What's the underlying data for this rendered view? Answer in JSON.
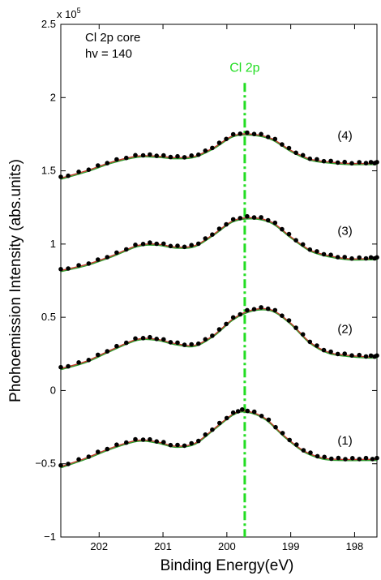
{
  "chart_data": {
    "type": "line",
    "xlabel": "Binding Energy(eV)",
    "ylabel": "Phohoemission Intensity (abs.units)",
    "y_multiplier": "x 10",
    "y_multiplier_exp": "5",
    "xlim": [
      202.6,
      197.65
    ],
    "ylim": [
      -1,
      2.5
    ],
    "x_reversed": true,
    "x_ticks": [
      202,
      201,
      200,
      199,
      198
    ],
    "x_tick_labels": [
      "202",
      "201",
      "200",
      "199",
      "198"
    ],
    "y_ticks": [
      -1,
      -0.5,
      0,
      0.5,
      1,
      1.5,
      2,
      2.5
    ],
    "y_tick_labels": [
      "−1",
      "−0.5",
      "0",
      "0.5",
      "1",
      "1.5",
      "2",
      "2.5"
    ],
    "annotation_lines": [
      "Cl 2p core",
      "hv = 140"
    ],
    "marker_line": {
      "x": 199.72,
      "label": "Cl 2p",
      "color": "#22dd22"
    },
    "fit_colors": [
      "#c0392b",
      "#2e9e2e"
    ],
    "point_color": "#000000",
    "series": [
      {
        "label": "(1)",
        "label_x": 198.15,
        "label_y": -0.34,
        "x": [
          202.6,
          202.2,
          201.8,
          201.4,
          201.1,
          200.8,
          200.5,
          200.2,
          199.9,
          199.7,
          199.4,
          199.1,
          198.8,
          198.5,
          198.2,
          197.9,
          197.65
        ],
        "y": [
          -0.52,
          -0.46,
          -0.39,
          -0.34,
          -0.35,
          -0.38,
          -0.36,
          -0.26,
          -0.16,
          -0.14,
          -0.19,
          -0.31,
          -0.41,
          -0.46,
          -0.47,
          -0.47,
          -0.47
        ]
      },
      {
        "label": "(2)",
        "label_x": 198.15,
        "label_y": 0.42,
        "x": [
          202.6,
          202.2,
          201.8,
          201.4,
          201.1,
          200.8,
          200.5,
          200.2,
          199.9,
          199.6,
          199.3,
          199.0,
          198.7,
          198.4,
          198.1,
          197.8,
          197.65
        ],
        "y": [
          0.15,
          0.2,
          0.28,
          0.35,
          0.35,
          0.32,
          0.31,
          0.38,
          0.49,
          0.55,
          0.55,
          0.46,
          0.33,
          0.26,
          0.24,
          0.23,
          0.23
        ]
      },
      {
        "label": "(3)",
        "label_x": 198.15,
        "label_y": 1.09,
        "x": [
          202.6,
          202.2,
          201.8,
          201.4,
          201.1,
          200.8,
          200.5,
          200.2,
          199.9,
          199.6,
          199.3,
          199.0,
          198.7,
          198.4,
          198.1,
          197.8,
          197.65
        ],
        "y": [
          0.82,
          0.86,
          0.92,
          0.99,
          1.0,
          0.98,
          0.99,
          1.07,
          1.16,
          1.18,
          1.15,
          1.05,
          0.96,
          0.92,
          0.9,
          0.9,
          0.9
        ]
      },
      {
        "label": "(4)",
        "label_x": 198.15,
        "label_y": 1.74,
        "x": [
          202.6,
          202.2,
          201.8,
          201.4,
          201.1,
          200.8,
          200.5,
          200.2,
          199.9,
          199.6,
          199.3,
          199.0,
          198.7,
          198.4,
          198.1,
          197.8,
          197.65
        ],
        "y": [
          1.45,
          1.5,
          1.56,
          1.6,
          1.6,
          1.59,
          1.6,
          1.66,
          1.74,
          1.75,
          1.72,
          1.64,
          1.58,
          1.56,
          1.55,
          1.55,
          1.55
        ]
      }
    ]
  }
}
